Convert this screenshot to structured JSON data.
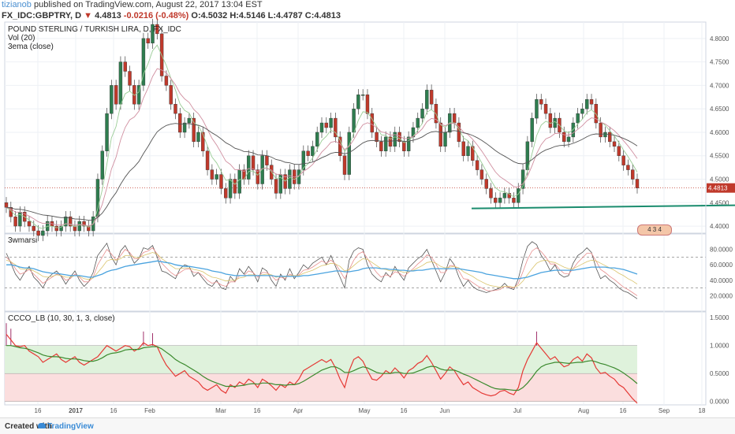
{
  "header": {
    "user": "tizianob",
    "published": "published on TradingView.com, August 22, 2017 13:04 EST",
    "symbol": "FX_IDC:GBPTRY, D",
    "last": "4.4813",
    "change": "-0.0216 (-0.48%)",
    "open": "O:4.5032",
    "high": "H:4.5146",
    "low": "L:4.4787",
    "close": "C:4.4813"
  },
  "legend": {
    "title": "POUND STERLING / TURKISH LIRA, D, FX_IDC",
    "vol": "Vol (20)",
    "ema": "3ema (close)",
    "rsi": "3wmarsi",
    "ccco": "CCCO_LB (10, 30, 1, 3, close)"
  },
  "footer": {
    "created": "Created with",
    "brand": "TradingView"
  },
  "badge": "4 3 4",
  "colors": {
    "up": "#2e7d4f",
    "down": "#c0392b",
    "support": "#1a8c6e",
    "grid": "#eef1f5",
    "ema_light": "#9acd96",
    "ema_dark": "#555555",
    "ema_mid": "#d08fa0"
  },
  "chart_data": [
    {
      "type": "candlestick",
      "title": "POUND STERLING / TURKISH LIRA, D, FX_IDC",
      "ylim": [
        4.385,
        4.835
      ],
      "yticks": [
        "4.8000",
        "4.7500",
        "4.7000",
        "4.6500",
        "4.6000",
        "4.5500",
        "4.5000",
        "4.4500",
        "4.4000"
      ],
      "last_price_label": "4.4813",
      "last_price": 4.4813,
      "support_level": 4.441,
      "x_labels": [
        "16",
        "2017",
        "16",
        "Feb",
        "Mar",
        "16",
        "Apr",
        "May",
        "16",
        "Jun",
        "Jul",
        "Aug",
        "16",
        "Sep",
        "18"
      ],
      "closes": [
        4.44,
        4.42,
        4.4,
        4.43,
        4.41,
        4.4,
        4.39,
        4.38,
        4.39,
        4.41,
        4.4,
        4.39,
        4.4,
        4.42,
        4.4,
        4.39,
        4.41,
        4.4,
        4.39,
        4.42,
        4.5,
        4.56,
        4.64,
        4.7,
        4.66,
        4.75,
        4.73,
        4.7,
        4.66,
        4.7,
        4.8,
        4.79,
        4.83,
        4.81,
        4.72,
        4.7,
        4.66,
        4.64,
        4.6,
        4.62,
        4.63,
        4.58,
        4.6,
        4.56,
        4.52,
        4.5,
        4.51,
        4.48,
        4.46,
        4.5,
        4.47,
        4.52,
        4.5,
        4.55,
        4.52,
        4.49,
        4.55,
        4.53,
        4.5,
        4.47,
        4.51,
        4.48,
        4.52,
        4.49,
        4.52,
        4.56,
        4.55,
        4.57,
        4.6,
        4.62,
        4.61,
        4.63,
        4.59,
        4.55,
        4.51,
        4.6,
        4.65,
        4.68,
        4.68,
        4.64,
        4.6,
        4.58,
        4.56,
        4.59,
        4.57,
        4.6,
        4.58,
        4.56,
        4.59,
        4.61,
        4.63,
        4.65,
        4.69,
        4.66,
        4.62,
        4.57,
        4.6,
        4.64,
        4.62,
        4.58,
        4.55,
        4.57,
        4.54,
        4.52,
        4.5,
        4.48,
        4.46,
        4.45,
        4.46,
        4.47,
        4.46,
        4.45,
        4.48,
        4.52,
        4.58,
        4.63,
        4.67,
        4.66,
        4.64,
        4.61,
        4.63,
        4.6,
        4.58,
        4.59,
        4.62,
        4.64,
        4.65,
        4.67,
        4.66,
        4.62,
        4.59,
        4.6,
        4.58,
        4.57,
        4.55,
        4.53,
        4.52,
        4.5,
        4.4813
      ]
    },
    {
      "type": "line",
      "title": "3wmarsi",
      "ylim": [
        0,
        100
      ],
      "yticks": [
        "80.0000",
        "60.0000",
        "40.0000",
        "20.0000"
      ],
      "levels": [
        70,
        30
      ],
      "series": [
        {
          "values": [
            75,
            62,
            48,
            40,
            50,
            58,
            44,
            38,
            30,
            42,
            48,
            52,
            45,
            35,
            44,
            52,
            40,
            32,
            38,
            50,
            72,
            80,
            88,
            70,
            60,
            78,
            85,
            74,
            62,
            68,
            82,
            80,
            85,
            70,
            52,
            50,
            46,
            42,
            55,
            60,
            58,
            45,
            50,
            42,
            35,
            32,
            40,
            30,
            28,
            45,
            38,
            55,
            48,
            58,
            50,
            38,
            56,
            52,
            40,
            32,
            48,
            40,
            55,
            42,
            50,
            60,
            55,
            62,
            66,
            70,
            60,
            72,
            58,
            44,
            30,
            66,
            78,
            82,
            80,
            60,
            48,
            42,
            38,
            50,
            44,
            58,
            48,
            40,
            56,
            62,
            68,
            72,
            80,
            66,
            52,
            38,
            50,
            68,
            60,
            44,
            32,
            40,
            32,
            28,
            26,
            24,
            26,
            28,
            30,
            36,
            30,
            28,
            42,
            66,
            84,
            90,
            86,
            72,
            64,
            52,
            60,
            48,
            44,
            46,
            62,
            72,
            76,
            82,
            76,
            56,
            42,
            46,
            40,
            36,
            30,
            26,
            24,
            20,
            16
          ]
        },
        {
          "values": [
            70,
            64,
            55,
            48,
            50,
            54,
            48,
            42,
            36,
            40,
            44,
            48,
            46,
            40,
            42,
            48,
            44,
            38,
            38,
            44,
            60,
            70,
            80,
            74,
            66,
            72,
            80,
            76,
            68,
            68,
            76,
            78,
            82,
            74,
            62,
            56,
            50,
            46,
            50,
            54,
            55,
            50,
            50,
            46,
            40,
            36,
            38,
            34,
            32,
            38,
            38,
            46,
            46,
            52,
            50,
            44,
            50,
            50,
            46,
            40,
            44,
            42,
            48,
            45,
            47,
            53,
            54,
            57,
            61,
            65,
            62,
            66,
            61,
            52,
            42,
            54,
            66,
            74,
            77,
            68,
            58,
            50,
            44,
            47,
            45,
            51,
            49,
            45,
            50,
            55,
            61,
            66,
            73,
            70,
            61,
            50,
            50,
            59,
            59,
            52,
            42,
            41,
            37,
            33,
            30,
            27,
            26,
            27,
            28,
            32,
            31,
            30,
            36,
            51,
            67,
            78,
            82,
            77,
            70,
            61,
            61,
            54,
            49,
            48,
            55,
            63,
            69,
            75,
            75,
            65,
            54,
            50,
            45,
            41,
            36,
            31,
            28,
            24,
            20
          ]
        },
        {
          "values": [
            66,
            64,
            60,
            55,
            54,
            55,
            52,
            49,
            45,
            44,
            45,
            47,
            46,
            44,
            44,
            46,
            45,
            42,
            41,
            43,
            50,
            57,
            65,
            67,
            66,
            68,
            72,
            72,
            70,
            69,
            72,
            74,
            76,
            74,
            68,
            64,
            59,
            55,
            55,
            56,
            56,
            54,
            53,
            51,
            47,
            44,
            43,
            41,
            39,
            40,
            40,
            43,
            44,
            47,
            47,
            46,
            47,
            48,
            47,
            44,
            45,
            44,
            46,
            46,
            46,
            49,
            51,
            53,
            56,
            59,
            60,
            62,
            61,
            58,
            52,
            54,
            59,
            64,
            68,
            67,
            63,
            59,
            55,
            54,
            52,
            53,
            52,
            50,
            51,
            53,
            56,
            59,
            63,
            64,
            62,
            58,
            56,
            57,
            58,
            56,
            51,
            48,
            45,
            41,
            38,
            35,
            33,
            32,
            31,
            32,
            32,
            31,
            33,
            39,
            47,
            55,
            62,
            65,
            66,
            64,
            63,
            60,
            57,
            55,
            55,
            58,
            61,
            64,
            66,
            65,
            62,
            59,
            56,
            53,
            49,
            46,
            42,
            39,
            35
          ]
        },
        {
          "values": [
            60,
            60,
            59,
            57,
            56,
            56,
            55,
            53,
            51,
            50,
            49,
            49,
            48,
            47,
            46,
            46,
            46,
            45,
            44,
            44,
            46,
            48,
            51,
            53,
            54,
            56,
            58,
            59,
            60,
            61,
            62,
            63,
            64,
            65,
            64,
            63,
            62,
            60,
            59,
            58,
            58,
            57,
            56,
            55,
            54,
            52,
            51,
            50,
            48,
            47,
            46,
            46,
            46,
            46,
            46,
            46,
            46,
            46,
            46,
            45,
            45,
            45,
            45,
            45,
            45,
            46,
            46,
            47,
            48,
            49,
            50,
            51,
            52,
            52,
            51,
            51,
            52,
            53,
            55,
            56,
            56,
            56,
            55,
            55,
            54,
            54,
            53,
            53,
            52,
            52,
            53,
            53,
            54,
            55,
            55,
            55,
            55,
            55,
            55,
            55,
            54,
            53,
            52,
            51,
            50,
            48,
            47,
            46,
            45,
            44,
            43,
            42,
            42,
            43,
            44,
            46,
            48,
            50,
            51,
            52,
            53,
            53,
            53,
            53,
            53,
            54,
            55,
            56,
            57,
            57,
            57,
            57,
            56,
            56,
            55,
            54,
            52,
            50,
            48
          ]
        }
      ]
    },
    {
      "type": "line",
      "title": "CCCO_LB (10, 30, 1, 3, close)",
      "ylim": [
        -0.06,
        1.6
      ],
      "yticks": [
        "1.5000",
        "1.0000",
        "0.5000",
        "0.0000"
      ],
      "levels": [
        1.0,
        0.5,
        0.0
      ],
      "series": [
        {
          "values": [
            1.2,
            1.1,
            1.0,
            0.98,
            1.0,
            0.9,
            0.85,
            0.8,
            0.7,
            0.75,
            0.8,
            0.85,
            0.75,
            0.7,
            0.75,
            0.8,
            0.7,
            0.65,
            0.7,
            0.75,
            0.8,
            0.9,
            1.0,
            0.95,
            0.9,
            0.95,
            1.0,
            0.98,
            0.9,
            0.95,
            1.05,
            1.0,
            1.02,
            0.98,
            0.8,
            0.65,
            0.55,
            0.45,
            0.5,
            0.55,
            0.45,
            0.4,
            0.35,
            0.25,
            0.2,
            0.25,
            0.3,
            0.2,
            0.15,
            0.3,
            0.25,
            0.35,
            0.3,
            0.4,
            0.35,
            0.25,
            0.4,
            0.35,
            0.28,
            0.2,
            0.3,
            0.25,
            0.35,
            0.3,
            0.4,
            0.55,
            0.6,
            0.65,
            0.7,
            0.75,
            0.7,
            0.75,
            0.6,
            0.4,
            0.25,
            0.55,
            0.75,
            0.8,
            0.72,
            0.55,
            0.4,
            0.38,
            0.45,
            0.55,
            0.5,
            0.6,
            0.52,
            0.42,
            0.55,
            0.6,
            0.68,
            0.72,
            0.82,
            0.7,
            0.55,
            0.4,
            0.5,
            0.62,
            0.55,
            0.42,
            0.3,
            0.35,
            0.25,
            0.2,
            0.15,
            0.12,
            0.1,
            0.12,
            0.18,
            0.2,
            0.15,
            0.12,
            0.25,
            0.55,
            0.75,
            0.9,
            1.05,
            0.95,
            0.85,
            0.75,
            0.8,
            0.7,
            0.62,
            0.65,
            0.75,
            0.8,
            0.72,
            0.85,
            0.78,
            0.6,
            0.5,
            0.52,
            0.45,
            0.4,
            0.3,
            0.25,
            0.15,
            0.05,
            -0.03
          ]
        },
        {
          "values": [
            1.0,
            1.0,
            0.98,
            0.96,
            0.95,
            0.93,
            0.9,
            0.87,
            0.83,
            0.81,
            0.8,
            0.8,
            0.79,
            0.77,
            0.76,
            0.76,
            0.75,
            0.73,
            0.72,
            0.72,
            0.74,
            0.78,
            0.83,
            0.86,
            0.87,
            0.89,
            0.92,
            0.93,
            0.93,
            0.93,
            0.96,
            0.97,
            0.98,
            0.98,
            0.94,
            0.88,
            0.82,
            0.75,
            0.7,
            0.66,
            0.61,
            0.56,
            0.51,
            0.45,
            0.4,
            0.36,
            0.33,
            0.3,
            0.27,
            0.27,
            0.27,
            0.28,
            0.29,
            0.31,
            0.32,
            0.31,
            0.33,
            0.33,
            0.32,
            0.3,
            0.3,
            0.29,
            0.3,
            0.3,
            0.32,
            0.36,
            0.41,
            0.46,
            0.51,
            0.56,
            0.59,
            0.62,
            0.62,
            0.58,
            0.52,
            0.52,
            0.55,
            0.59,
            0.62,
            0.6,
            0.56,
            0.52,
            0.5,
            0.5,
            0.5,
            0.52,
            0.52,
            0.5,
            0.5,
            0.51,
            0.54,
            0.57,
            0.61,
            0.63,
            0.62,
            0.58,
            0.56,
            0.56,
            0.56,
            0.53,
            0.49,
            0.46,
            0.42,
            0.38,
            0.34,
            0.3,
            0.26,
            0.23,
            0.22,
            0.22,
            0.21,
            0.2,
            0.2,
            0.25,
            0.33,
            0.43,
            0.54,
            0.62,
            0.66,
            0.68,
            0.7,
            0.7,
            0.69,
            0.68,
            0.69,
            0.7,
            0.7,
            0.72,
            0.73,
            0.71,
            0.68,
            0.66,
            0.63,
            0.6,
            0.56,
            0.51,
            0.45,
            0.39,
            0.32
          ]
        }
      ]
    }
  ]
}
